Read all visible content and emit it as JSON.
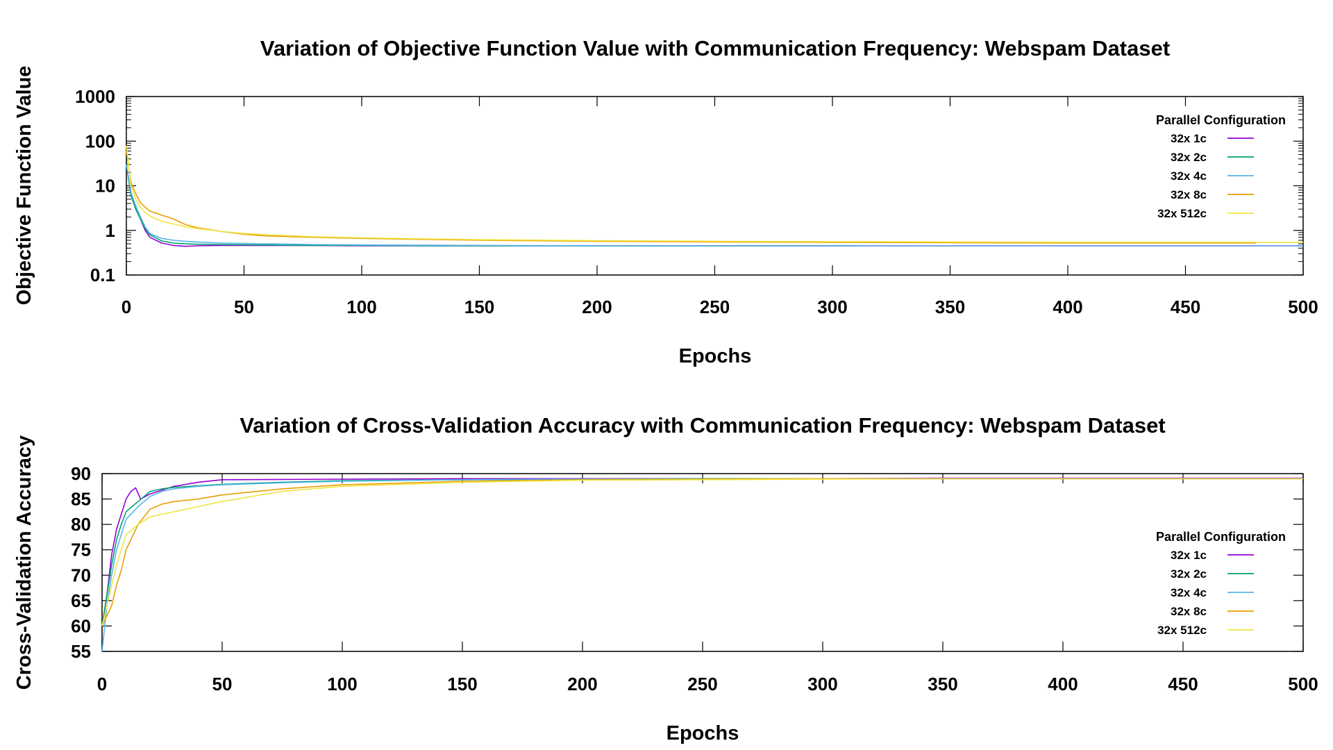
{
  "chart_data": [
    {
      "type": "line",
      "title": "Variation of Objective Function Value with Communication Frequency: Webspam Dataset",
      "xlabel": "Epochs",
      "ylabel": "Objective Function Value",
      "xlim": [
        0,
        500
      ],
      "ylim": [
        0.1,
        1000
      ],
      "yscale": "log",
      "xticks": [
        "0",
        "50",
        "100",
        "150",
        "200",
        "250",
        "300",
        "350",
        "400",
        "450",
        "500"
      ],
      "yticks": [
        "0.1",
        "1",
        "10",
        "100",
        "1000"
      ],
      "legend_title": "Parallel Configuration",
      "legend_position": "top-right",
      "series": [
        {
          "name": "32x 1c",
          "color": "#9400d3",
          "x": [
            0,
            2,
            4,
            6,
            8,
            10,
            15,
            20,
            25,
            30,
            40,
            60,
            80,
            100,
            150,
            200,
            250,
            300,
            350,
            400,
            450,
            500
          ],
          "y": [
            30,
            6,
            3,
            1.8,
            1.0,
            0.7,
            0.52,
            0.46,
            0.44,
            0.45,
            0.46,
            0.46,
            0.46,
            0.45,
            0.45,
            0.45,
            0.45,
            0.45,
            0.45,
            0.45,
            0.45,
            0.45
          ]
        },
        {
          "name": "32x 2c",
          "color": "#009e73",
          "x": [
            0,
            2,
            4,
            6,
            8,
            10,
            15,
            20,
            25,
            30,
            40,
            60,
            80,
            100,
            150,
            200,
            250,
            300,
            310
          ],
          "y": [
            30,
            6,
            3,
            1.8,
            1.1,
            0.8,
            0.58,
            0.52,
            0.5,
            0.49,
            0.48,
            0.47,
            0.46,
            0.46,
            0.45,
            0.45,
            0.45,
            0.45,
            0.45
          ]
        },
        {
          "name": "32x 4c",
          "color": "#56b4e9",
          "x": [
            0,
            2,
            4,
            6,
            8,
            10,
            15,
            20,
            25,
            30,
            40,
            60,
            80,
            100,
            150,
            200,
            250,
            300,
            350,
            400,
            450,
            500
          ],
          "y": [
            30,
            7,
            3.5,
            2.0,
            1.2,
            0.85,
            0.66,
            0.6,
            0.57,
            0.55,
            0.52,
            0.5,
            0.48,
            0.47,
            0.46,
            0.45,
            0.45,
            0.45,
            0.45,
            0.45,
            0.45,
            0.45
          ]
        },
        {
          "name": "32x 8c",
          "color": "#e69f00",
          "x": [
            0,
            2,
            4,
            6,
            8,
            10,
            15,
            20,
            25,
            30,
            40,
            50,
            60,
            80,
            100,
            150,
            200,
            250,
            300,
            350,
            400,
            450,
            480
          ],
          "y": [
            60,
            12,
            6.5,
            4.2,
            3.3,
            2.7,
            2.2,
            1.8,
            1.35,
            1.15,
            0.95,
            0.82,
            0.75,
            0.7,
            0.66,
            0.6,
            0.57,
            0.55,
            0.54,
            0.53,
            0.52,
            0.52,
            0.52
          ]
        },
        {
          "name": "32x 512c",
          "color": "#f0e442",
          "x": [
            0,
            2,
            4,
            6,
            8,
            10,
            15,
            20,
            25,
            30,
            40,
            50,
            60,
            80,
            100,
            150,
            200,
            250,
            300,
            350,
            400,
            450,
            500
          ],
          "y": [
            80,
            10,
            5,
            3.2,
            2.5,
            2.1,
            1.6,
            1.4,
            1.2,
            1.1,
            0.95,
            0.85,
            0.8,
            0.72,
            0.68,
            0.62,
            0.59,
            0.57,
            0.56,
            0.55,
            0.54,
            0.54,
            0.54
          ]
        }
      ]
    },
    {
      "type": "line",
      "title": "Variation of Cross-Validation Accuracy with Communication Frequency: Webspam Dataset",
      "xlabel": "Epochs",
      "ylabel": "Cross-Validation Accuracy",
      "xlim": [
        0,
        500
      ],
      "ylim": [
        55,
        90
      ],
      "yscale": "linear",
      "xticks": [
        "0",
        "50",
        "100",
        "150",
        "200",
        "250",
        "300",
        "350",
        "400",
        "450",
        "500"
      ],
      "yticks": [
        "55",
        "60",
        "65",
        "70",
        "75",
        "80",
        "85",
        "90"
      ],
      "legend_title": "Parallel Configuration",
      "legend_position": "right",
      "series": [
        {
          "name": "32x 1c",
          "color": "#9400d3",
          "x": [
            0,
            2,
            4,
            6,
            8,
            10,
            12,
            14,
            16,
            20,
            30,
            40,
            50,
            100,
            150,
            200,
            250,
            300,
            350,
            400,
            450,
            500
          ],
          "y": [
            60,
            66,
            74,
            79,
            82,
            85,
            86.5,
            87.2,
            85,
            86,
            87.5,
            88.3,
            88.8,
            88.9,
            89.0,
            89.0,
            89.0,
            89.0,
            89.1,
            89.1,
            89.1,
            89.1
          ]
        },
        {
          "name": "32x 2c",
          "color": "#009e73",
          "x": [
            0,
            2,
            4,
            6,
            8,
            10,
            15,
            20,
            25,
            30,
            40,
            50,
            75,
            100,
            150,
            200,
            250,
            300,
            350,
            400,
            450,
            500
          ],
          "y": [
            60,
            66,
            72,
            77,
            80,
            82.5,
            84.5,
            86.5,
            87,
            87.3,
            87.6,
            87.9,
            88.3,
            88.6,
            88.8,
            88.9,
            89.0,
            89.0,
            89.0,
            89.0,
            89.0,
            89.0
          ]
        },
        {
          "name": "32x 4c",
          "color": "#56b4e9",
          "x": [
            0,
            2,
            4,
            6,
            8,
            10,
            15,
            20,
            25,
            30,
            40,
            50,
            75,
            100,
            150,
            200,
            250,
            300,
            350,
            400,
            450,
            500
          ],
          "y": [
            55,
            64,
            70,
            75,
            78,
            81,
            83.5,
            85.5,
            86.5,
            87,
            87.5,
            87.8,
            88.2,
            88.5,
            88.8,
            88.9,
            88.9,
            89.0,
            89.0,
            89.0,
            89.0,
            89.0
          ]
        },
        {
          "name": "32x 8c",
          "color": "#e69f00",
          "x": [
            0,
            2,
            4,
            6,
            8,
            10,
            15,
            20,
            25,
            30,
            40,
            50,
            75,
            100,
            150,
            200,
            250,
            300,
            350,
            400,
            450,
            500
          ],
          "y": [
            60,
            62,
            64,
            68,
            71,
            75,
            80,
            83,
            84,
            84.5,
            85,
            85.8,
            87,
            87.8,
            88.5,
            88.8,
            88.9,
            89.0,
            89.0,
            89.0,
            89.0,
            89.0
          ]
        },
        {
          "name": "32x 512c",
          "color": "#f0e442",
          "x": [
            0,
            2,
            4,
            6,
            8,
            10,
            15,
            20,
            25,
            30,
            40,
            50,
            75,
            100,
            150,
            200,
            250,
            300,
            350,
            400,
            450,
            500
          ],
          "y": [
            60,
            64,
            68,
            72,
            75,
            78,
            80,
            81.5,
            82,
            82.5,
            83.5,
            84.5,
            86.5,
            87.5,
            88.3,
            88.7,
            88.8,
            88.9,
            89.0,
            89.0,
            89.0,
            89.0
          ]
        }
      ]
    }
  ]
}
